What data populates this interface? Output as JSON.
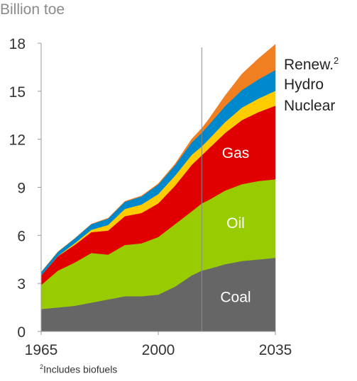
{
  "chart_data": {
    "type": "area",
    "stacked": true,
    "ylabel": "Billion toe",
    "x": [
      1965,
      1970,
      1975,
      1980,
      1985,
      1990,
      1995,
      2000,
      2005,
      2010,
      2013,
      2015,
      2020,
      2025,
      2030,
      2035
    ],
    "ylim": [
      0,
      18
    ],
    "xlim": [
      1965,
      2035
    ],
    "yticks": [
      "0",
      "3",
      "6",
      "9",
      "12",
      "15",
      "18"
    ],
    "xticks": [
      "1965",
      "2000",
      "2035"
    ],
    "projection_marker_x": 2013,
    "footnote": {
      "mark": "2",
      "text": "Includes biofuels"
    },
    "series": [
      {
        "name": "Coal",
        "color": "#666666",
        "values": [
          1.4,
          1.5,
          1.6,
          1.8,
          2.0,
          2.2,
          2.2,
          2.3,
          2.8,
          3.5,
          3.8,
          3.9,
          4.2,
          4.4,
          4.5,
          4.6
        ]
      },
      {
        "name": "Oil",
        "color": "#99cc00",
        "values": [
          1.5,
          2.3,
          2.7,
          3.1,
          2.8,
          3.2,
          3.3,
          3.6,
          3.9,
          4.0,
          4.2,
          4.3,
          4.6,
          4.8,
          4.9,
          4.9
        ]
      },
      {
        "name": "Gas",
        "color": "#e00000",
        "values": [
          0.6,
          0.9,
          1.1,
          1.3,
          1.5,
          1.8,
          1.9,
          2.1,
          2.4,
          2.9,
          3.0,
          3.2,
          3.6,
          4.0,
          4.3,
          4.6
        ]
      },
      {
        "name": "Nuclear",
        "color": "#ffcc00",
        "values": [
          0.0,
          0.02,
          0.1,
          0.15,
          0.35,
          0.45,
          0.53,
          0.58,
          0.63,
          0.63,
          0.56,
          0.58,
          0.68,
          0.78,
          0.85,
          0.93
        ]
      },
      {
        "name": "Hydro",
        "color": "#0088cc",
        "values": [
          0.2,
          0.25,
          0.3,
          0.35,
          0.4,
          0.45,
          0.5,
          0.6,
          0.65,
          0.78,
          0.85,
          0.9,
          1.0,
          1.1,
          1.2,
          1.3
        ]
      },
      {
        "name": "Renew.",
        "label_sup": "2",
        "color": "#f07f22",
        "values": [
          0.0,
          0.0,
          0.0,
          0.01,
          0.02,
          0.03,
          0.04,
          0.05,
          0.08,
          0.2,
          0.28,
          0.35,
          0.65,
          1.0,
          1.3,
          1.6
        ]
      }
    ]
  }
}
